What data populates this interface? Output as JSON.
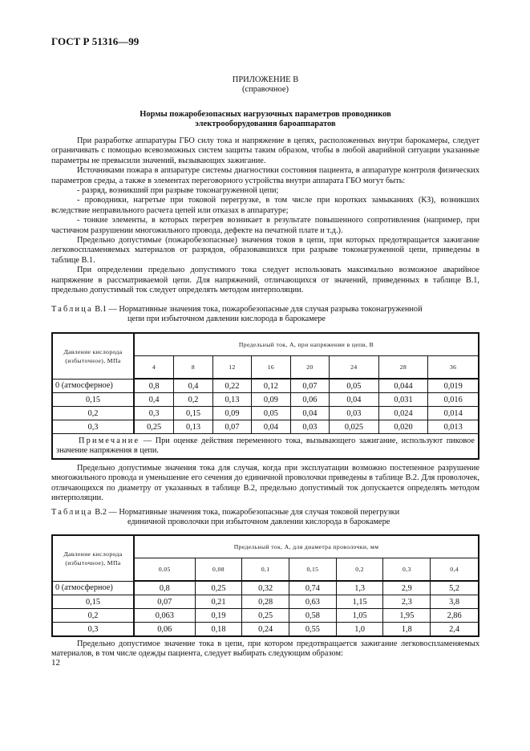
{
  "header": "ГОСТ Р 51316—99",
  "appendix": {
    "title": "ПРИЛОЖЕНИЕ В",
    "subtitle": "(справочное)"
  },
  "heading": [
    "Нормы пожаробезопасных нагрузочных параметров проводников",
    "электрооборудования бароаппаратов"
  ],
  "paragraphs1": [
    "При разработке аппаратуры ГБО силу тока и напряжение в цепях, расположенных внутри барокамеры, следует ограничивать с помощью всевозможных систем защиты таким образом, чтобы в любой аварийной ситуации указанные параметры не превысили значений, вызывающих зажигание.",
    "Источниками пожара в аппаратуре системы диагностики состояния пациента, в аппаратуре контроля физических параметров среды, а также в элементах переговорного устройства внутри аппарата ГБО могут быть:",
    "- разряд, возникший при разрыве токонагруженной цепи;",
    "- проводники, нагретые при токовой перегрузке, в том числе при коротких замыканиях (КЗ), возникших вследствие неправильного расчета цепей или отказах в аппаратуре;",
    "- тонкие элементы, в которых перегрев возникает в результате повышенного сопротивления (например, при частичном разрушении многожильного провода, дефекте на печатной плате и т.д.).",
    "Предельно допустимые (пожаробезопасные) значения токов в цепи, при которых предотвращается зажигание легковоспламеняемых материалов от разрядов, образовавшихся при разрыве токонагруженной цепи, приведены в таблице В.1.",
    "При определении предельно допустимого тока следует использовать максимально возможное аварийное напряжение в рассматриваемой цепи. Для напряжений, отличающихся от значений, приведенных в таблице В.1, предельно допустимый ток следует определять методом интерполяции."
  ],
  "table1": {
    "label": "Таблица",
    "caption1": "В.1 — Нормативные значения тока, пожаробезопасные для случая разрыва токонагруженной",
    "caption2": "цепи при избыточном давлении кислорода в барокамере",
    "row_header": "Давление кислорода (избыточное), МПа",
    "group_header": "Предельный ток, А, при напряжении в цепи, В",
    "columns": [
      "4",
      "8",
      "12",
      "16",
      "20",
      "24",
      "28",
      "36"
    ],
    "rows": [
      {
        "label": "0 (атмосферное)",
        "values": [
          "0,8",
          "0,4",
          "0,22",
          "0,12",
          "0,07",
          "0,05",
          "0,044",
          "0,019"
        ]
      },
      {
        "label": "0,15",
        "values": [
          "0,4",
          "0,2",
          "0,13",
          "0,09",
          "0,06",
          "0,04",
          "0,031",
          "0,016"
        ]
      },
      {
        "label": "0,2",
        "values": [
          "0,3",
          "0,15",
          "0,09",
          "0,05",
          "0,04",
          "0,03",
          "0,024",
          "0,014"
        ]
      },
      {
        "label": "0,3",
        "values": [
          "0,25",
          "0,13",
          "0,07",
          "0,04",
          "0,03",
          "0,025",
          "0,020",
          "0,013"
        ]
      }
    ],
    "note_label": "Примечание",
    "note_text": " — При оценке действия переменного тока, вызывающего зажигание, используют пиковое значение напряжения в цепи."
  },
  "paragraph2": "Предельно допустимые значения тока для случая, когда при эксплуатации возможно постепенное разрушение многожильного провода и уменьшение его сечения до единичной проволочки приведены в таблице В.2. Для проволочек, отличающихся по диаметру от указанных в таблице В.2, предельно допустимый ток допускается определять методом интерполяции.",
  "table2": {
    "label": "Таблица",
    "caption1": "В.2 — Нормативные значения тока, пожаробезопасные для случая токовой перегрузки",
    "caption2": "единичной проволочки при избыточном давлении кислорода в барокамере",
    "row_header": "Давление кислорода (избыточное), МПа",
    "group_header": "Предельный ток, А, для диаметра проволочки, мм",
    "columns": [
      "0,05",
      "0,08",
      "0,1",
      "0,15",
      "0,2",
      "0,3",
      "0,4"
    ],
    "rows": [
      {
        "label": "0 (атмосферное)",
        "values": [
          "0,8",
          "0,25",
          "0,32",
          "0,74",
          "1,3",
          "2,9",
          "5,2"
        ]
      },
      {
        "label": "0,15",
        "values": [
          "0,07",
          "0,21",
          "0,28",
          "0,63",
          "1,15",
          "2,3",
          "3,8"
        ]
      },
      {
        "label": "0,2",
        "values": [
          "0,063",
          "0,19",
          "0,25",
          "0,58",
          "1,05",
          "1,95",
          "2,86"
        ]
      },
      {
        "label": "0,3",
        "values": [
          "0,06",
          "0,18",
          "0,24",
          "0,55",
          "1,0",
          "1,8",
          "2,4"
        ]
      }
    ]
  },
  "paragraph3": "Предельно допустимое значение тока в цепи, при котором предотвращается зажигание легковоспламеняемых материалов, в том числе одежды пациента, следует выбирать следующим образом:",
  "page_number": "12"
}
